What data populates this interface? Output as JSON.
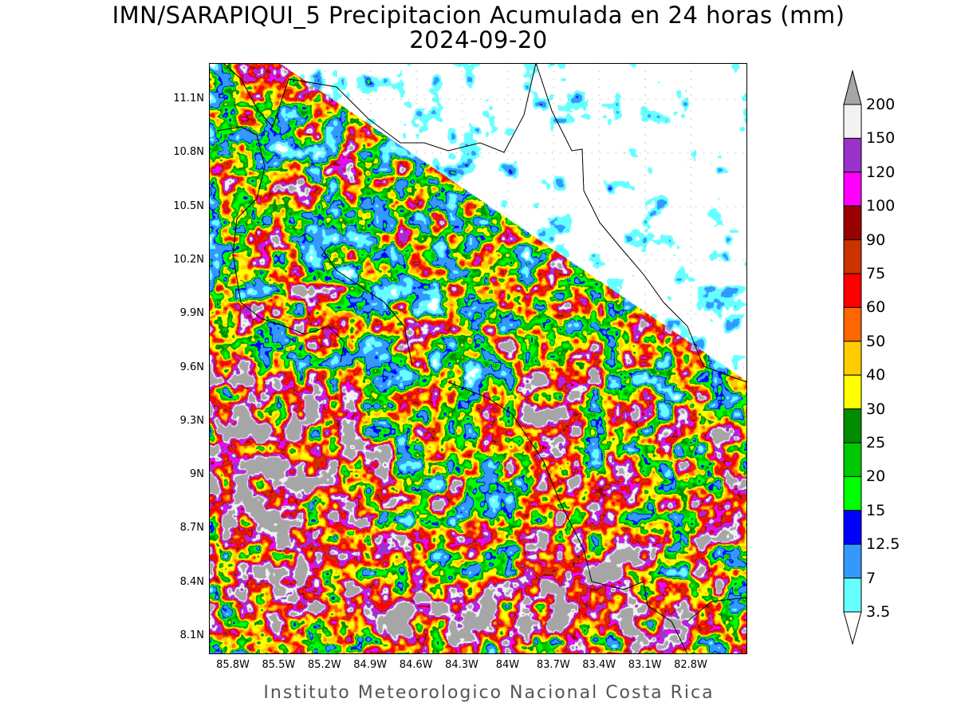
{
  "title": "IMN/SARAPIQUI_5 Precipitacion Acumulada en 24 horas (mm)",
  "date": "2024-09-20",
  "credit": "Instituto Meteorologico Nacional Costa Rica",
  "map": {
    "lat_ticks": [
      "11.1N",
      "10.8N",
      "10.5N",
      "10.2N",
      "9.9N",
      "9.6N",
      "9.3N",
      "9N",
      "8.7N",
      "8.4N",
      "8.1N"
    ],
    "lon_ticks": [
      "85.8W",
      "85.5W",
      "85.2W",
      "84.9W",
      "84.6W",
      "84.3W",
      "84W",
      "83.7W",
      "83.4W",
      "83.1W",
      "82.8W"
    ],
    "lat_range": [
      8.0,
      11.3
    ],
    "lon_range": [
      85.93,
      82.4
    ],
    "units": "mm"
  },
  "colorbar": {
    "labels": [
      "200",
      "150",
      "120",
      "100",
      "90",
      "75",
      "60",
      "50",
      "40",
      "30",
      "25",
      "20",
      "15",
      "12.5",
      "7",
      "3.5"
    ],
    "colors": [
      "#f2f2f2",
      "#9933cc",
      "#ff00ff",
      "#990000",
      "#cc3300",
      "#ff0000",
      "#ff6600",
      "#ffcc00",
      "#ffff00",
      "#008c00",
      "#00c800",
      "#00ff00",
      "#0000ff",
      "#3399ff",
      "#66ffff"
    ],
    "over_color": "#a6a6a6",
    "under_color": "#ffffff"
  }
}
